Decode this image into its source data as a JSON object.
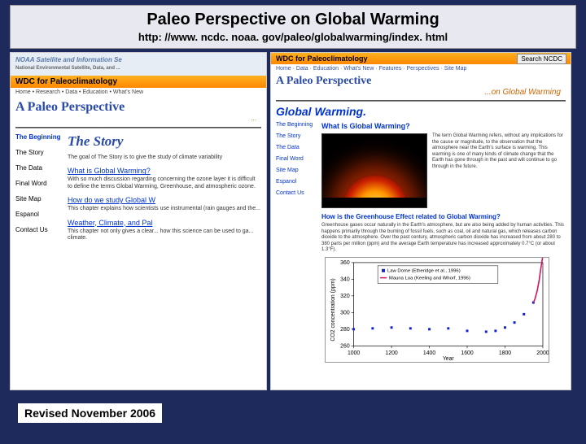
{
  "title": "Paleo Perspective on Global Warming",
  "url": "http: //www. ncdc. noaa. gov/paleo/globalwarming/index. html",
  "search_label": "Search NCDC",
  "noaa_banner": "NOAA Satellite and Information Se",
  "noaa_sub": "National Environmental Satellite, Data, and ...",
  "wdc": "WDC for Paleoclimatology",
  "nav_left": "Home • Research • Data • Education • What's New",
  "nav_right": "Home · Data · Education · What's New · Features · Perspectives · Site Map",
  "persp_l1": "A Paleo Perspective",
  "persp_l2": "...on Global Warming",
  "gw_heading": "Global Warming.",
  "story_h": "The Story",
  "left_nav": [
    "The Beginning",
    "The Story",
    "The Data",
    "Final Word",
    "Site Map",
    "Espanol",
    "Contact Us"
  ],
  "right_nav": [
    "The Beginning",
    "The Story",
    "The Data",
    "Final Word",
    "Site Map",
    "Espanol",
    "Contact Us"
  ],
  "left_para1": "The goal of The Story is to give the study of climate variability",
  "q1": "What is Global Warming?",
  "q1_p": "With so much discussion regarding concerning the ozone layer it is difficult to define the terms Global Warming, Greenhouse, and atmospheric ozone.",
  "q2": "How do we study Global W",
  "q2_p": "This chapter explains how scientists use instrumental (rain gauges and the...",
  "q3": "Weather, Climate, and Pal",
  "q3_p": "This chapter not only gives a clear... how this science can be used to ga... climate.",
  "r_q": "What Is Global Warming?",
  "r_txt": "The term Global Warming refers, without any implications for the cause or magnitude, to the observation that the atmosphere near the Earth's surface is warming. This warming is one of many kinds of climate change that the Earth has gone through in the past and will continue to go through in the future.",
  "gh_h": "How is the Greenhouse Effect related to Global Warming?",
  "gh_p": "Greenhouse gases occur naturally in the Earth's atmosphere, but are also being added by human activities. This happens primarily through the burning of fossil fuels, such as coal, oil and natural gas, which releases carbon dioxide to the atmosphere. Over the past century, atmospheric carbon dioxide has increased from about 280 to 380 parts per million (ppm) and the average Earth temperature has increased approximately 0.7°C (or about 1.3°F).",
  "chart": {
    "ylabel": "CO2 concentration (ppm)",
    "xlabel": "Year",
    "xticks": [
      1000,
      1200,
      1400,
      1600,
      1800,
      2000
    ],
    "yticks": [
      260,
      280,
      300,
      320,
      340,
      360
    ],
    "legend": [
      {
        "label": "Law Dome (Etheridge et al., 1996)",
        "color": "#1020d0"
      },
      {
        "label": "Mauna Loa (Keeling and Whorf, 1996)",
        "color": "#d01060"
      }
    ],
    "series1_color": "#1020d0",
    "series2_color": "#d01060",
    "series1": [
      [
        1000,
        280
      ],
      [
        1100,
        281
      ],
      [
        1200,
        282
      ],
      [
        1300,
        281
      ],
      [
        1400,
        280
      ],
      [
        1500,
        281
      ],
      [
        1600,
        278
      ],
      [
        1700,
        277
      ],
      [
        1750,
        278
      ],
      [
        1800,
        282
      ],
      [
        1850,
        288
      ],
      [
        1900,
        298
      ],
      [
        1950,
        312
      ]
    ],
    "series2": [
      [
        1958,
        316
      ],
      [
        1970,
        326
      ],
      [
        1980,
        338
      ],
      [
        1990,
        354
      ],
      [
        2000,
        368
      ]
    ]
  },
  "revised": "Revised November 2006"
}
